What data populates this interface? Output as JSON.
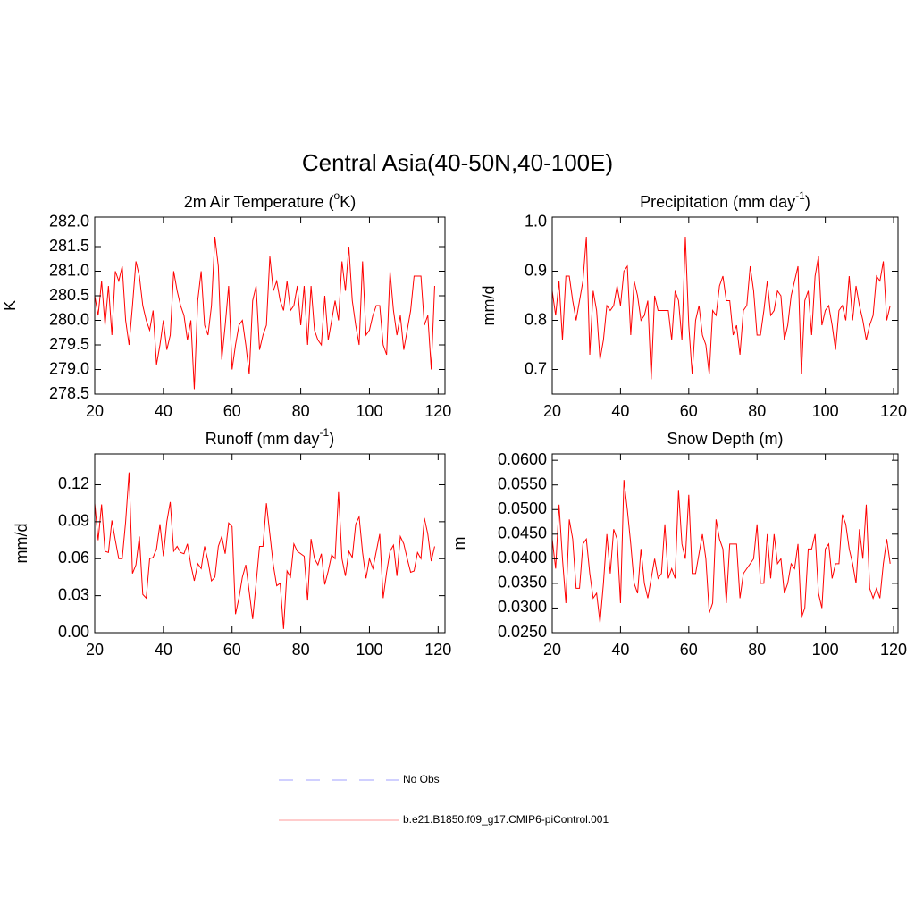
{
  "title": "Central Asia(40-50N,40-100E)",
  "legend": [
    {
      "label": "No Obs",
      "color": "#a0a0ff",
      "dash": true
    },
    {
      "label": "b.e21.B1850.f09_g17.CMIP6-piControl.001",
      "color": "#ff9a9a",
      "dash": false
    }
  ],
  "chart_data": [
    {
      "type": "line",
      "title": [
        {
          "text": "2m Air Temperature ("
        },
        {
          "text": "o",
          "sup": true
        },
        {
          "text": "K)"
        }
      ],
      "y_label": "K",
      "x": [
        20,
        21,
        22,
        23,
        24,
        25,
        26,
        27,
        28,
        29,
        30,
        31,
        32,
        33,
        34,
        35,
        36,
        37,
        38,
        39,
        40,
        41,
        42,
        43,
        44,
        45,
        46,
        47,
        48,
        49,
        50,
        51,
        52,
        53,
        54,
        55,
        56,
        57,
        58,
        59,
        60,
        61,
        62,
        63,
        64,
        65,
        66,
        67,
        68,
        69,
        70,
        71,
        72,
        73,
        74,
        75,
        76,
        77,
        78,
        79,
        80,
        81,
        82,
        83,
        84,
        85,
        86,
        87,
        88,
        89,
        90,
        91,
        92,
        93,
        94,
        95,
        96,
        97,
        98,
        99,
        100,
        101,
        102,
        103,
        104,
        105,
        106,
        107,
        108,
        109,
        110,
        111,
        112,
        113,
        114,
        115,
        116,
        117,
        118,
        119
      ],
      "series": [
        {
          "color": "#ff0000",
          "values": [
            280.5,
            280.1,
            280.8,
            279.9,
            280.7,
            279.7,
            281.0,
            280.8,
            281.1,
            280.0,
            279.5,
            280.3,
            281.2,
            280.9,
            280.3,
            280.0,
            279.8,
            280.2,
            279.1,
            279.5,
            280.0,
            279.4,
            279.7,
            281.0,
            280.6,
            280.3,
            280.1,
            279.6,
            280.0,
            278.6,
            280.4,
            281.0,
            279.9,
            279.7,
            280.3,
            281.7,
            281.1,
            279.2,
            279.9,
            280.7,
            279.0,
            279.5,
            279.9,
            280.0,
            279.5,
            278.9,
            280.4,
            280.7,
            279.4,
            279.7,
            279.9,
            281.3,
            280.6,
            280.8,
            280.4,
            280.2,
            280.8,
            280.2,
            280.3,
            280.7,
            279.9,
            280.7,
            279.5,
            280.7,
            279.8,
            279.6,
            279.5,
            280.5,
            279.6,
            280.0,
            280.4,
            280.0,
            281.2,
            280.6,
            281.5,
            280.4,
            279.9,
            279.5,
            281.2,
            279.7,
            279.8,
            280.1,
            280.3,
            280.3,
            279.5,
            279.3,
            281.0,
            280.2,
            279.7,
            280.1,
            279.4,
            279.8,
            280.2,
            280.9,
            280.9,
            280.9,
            279.9,
            280.1,
            279.0,
            280.7
          ]
        }
      ],
      "xlim": [
        20,
        122
      ],
      "xticks": [
        20,
        40,
        60,
        80,
        100,
        120
      ],
      "ylim": [
        278.5,
        282.1
      ],
      "yticks": [
        {
          "value": 278.5,
          "label": "278.5"
        },
        {
          "value": 279,
          "label": "279.0"
        },
        279.5,
        {
          "value": 280,
          "label": "280.0"
        },
        280.5,
        {
          "value": 281,
          "label": "281.0"
        },
        281.5,
        {
          "value": 282,
          "label": "282.0"
        }
      ]
    },
    {
      "type": "line",
      "title": [
        {
          "text": "Precipitation (mm day"
        },
        {
          "text": "-1",
          "sup": true
        },
        {
          "text": ")"
        }
      ],
      "y_label": "mm/d",
      "x": [
        20,
        21,
        22,
        23,
        24,
        25,
        26,
        27,
        28,
        29,
        30,
        31,
        32,
        33,
        34,
        35,
        36,
        37,
        38,
        39,
        40,
        41,
        42,
        43,
        44,
        45,
        46,
        47,
        48,
        49,
        50,
        51,
        52,
        53,
        54,
        55,
        56,
        57,
        58,
        59,
        60,
        61,
        62,
        63,
        64,
        65,
        66,
        67,
        68,
        69,
        70,
        71,
        72,
        73,
        74,
        75,
        76,
        77,
        78,
        79,
        80,
        81,
        82,
        83,
        84,
        85,
        86,
        87,
        88,
        89,
        90,
        91,
        92,
        93,
        94,
        95,
        96,
        97,
        98,
        99,
        100,
        101,
        102,
        103,
        104,
        105,
        106,
        107,
        108,
        109,
        110,
        111,
        112,
        113,
        114,
        115,
        116,
        117,
        118,
        119
      ],
      "series": [
        {
          "color": "#ff0000",
          "values": [
            0.86,
            0.81,
            0.88,
            0.76,
            0.89,
            0.89,
            0.84,
            0.8,
            0.84,
            0.88,
            0.97,
            0.73,
            0.86,
            0.82,
            0.72,
            0.76,
            0.83,
            0.82,
            0.83,
            0.87,
            0.83,
            0.9,
            0.91,
            0.77,
            0.88,
            0.85,
            0.8,
            0.81,
            0.84,
            0.68,
            0.85,
            0.82,
            0.82,
            0.82,
            0.82,
            0.76,
            0.86,
            0.84,
            0.76,
            0.97,
            0.79,
            0.69,
            0.8,
            0.83,
            0.77,
            0.75,
            0.69,
            0.82,
            0.81,
            0.87,
            0.89,
            0.84,
            0.84,
            0.77,
            0.79,
            0.73,
            0.82,
            0.83,
            0.91,
            0.86,
            0.77,
            0.77,
            0.82,
            0.88,
            0.81,
            0.82,
            0.86,
            0.85,
            0.76,
            0.79,
            0.85,
            0.88,
            0.91,
            0.69,
            0.84,
            0.86,
            0.77,
            0.89,
            0.93,
            0.79,
            0.82,
            0.83,
            0.79,
            0.74,
            0.82,
            0.83,
            0.8,
            0.89,
            0.8,
            0.87,
            0.83,
            0.8,
            0.76,
            0.79,
            0.81,
            0.89,
            0.88,
            0.92,
            0.8,
            0.83
          ]
        }
      ],
      "xlim": [
        20,
        121.3
      ],
      "xticks": [
        20,
        40,
        60,
        80,
        100,
        120
      ],
      "ylim": [
        0.65,
        1.01
      ],
      "yticks": [
        0.7,
        0.8,
        0.9,
        {
          "value": 1,
          "label": "1.0"
        }
      ]
    },
    {
      "type": "line",
      "title": [
        {
          "text": "Runoff (mm day"
        },
        {
          "text": "-1",
          "sup": true
        },
        {
          "text": ")"
        }
      ],
      "y_label": "mm/d",
      "x": [
        20,
        21,
        22,
        23,
        24,
        25,
        26,
        27,
        28,
        29,
        30,
        31,
        32,
        33,
        34,
        35,
        36,
        37,
        38,
        39,
        40,
        41,
        42,
        43,
        44,
        45,
        46,
        47,
        48,
        49,
        50,
        51,
        52,
        53,
        54,
        55,
        56,
        57,
        58,
        59,
        60,
        61,
        62,
        63,
        64,
        65,
        66,
        67,
        68,
        69,
        70,
        71,
        72,
        73,
        74,
        75,
        76,
        77,
        78,
        79,
        80,
        81,
        82,
        83,
        84,
        85,
        86,
        87,
        88,
        89,
        90,
        91,
        92,
        93,
        94,
        95,
        96,
        97,
        98,
        99,
        100,
        101,
        102,
        103,
        104,
        105,
        106,
        107,
        108,
        109,
        110,
        111,
        112,
        113,
        114,
        115,
        116,
        117,
        118,
        119
      ],
      "series": [
        {
          "color": "#ff0000",
          "values": [
            0.105,
            0.075,
            0.104,
            0.066,
            0.065,
            0.091,
            0.075,
            0.06,
            0.06,
            0.09,
            0.13,
            0.048,
            0.055,
            0.078,
            0.031,
            0.028,
            0.06,
            0.061,
            0.068,
            0.088,
            0.062,
            0.09,
            0.106,
            0.066,
            0.07,
            0.065,
            0.064,
            0.072,
            0.055,
            0.042,
            0.056,
            0.052,
            0.07,
            0.058,
            0.042,
            0.045,
            0.07,
            0.078,
            0.064,
            0.089,
            0.086,
            0.015,
            0.028,
            0.045,
            0.055,
            0.033,
            0.011,
            0.04,
            0.07,
            0.07,
            0.105,
            0.08,
            0.055,
            0.038,
            0.04,
            0.003,
            0.05,
            0.045,
            0.072,
            0.066,
            0.064,
            0.062,
            0.026,
            0.076,
            0.06,
            0.055,
            0.064,
            0.039,
            0.05,
            0.063,
            0.06,
            0.114,
            0.06,
            0.046,
            0.066,
            0.061,
            0.088,
            0.094,
            0.065,
            0.044,
            0.06,
            0.052,
            0.066,
            0.08,
            0.028,
            0.049,
            0.066,
            0.071,
            0.046,
            0.078,
            0.072,
            0.06,
            0.049,
            0.05,
            0.065,
            0.06,
            0.093,
            0.08,
            0.058,
            0.07
          ]
        }
      ],
      "xlim": [
        20,
        122
      ],
      "xticks": [
        20,
        40,
        60,
        80,
        100,
        120
      ],
      "ylim": [
        0,
        0.145
      ],
      "yticks": [
        {
          "value": 0,
          "label": "0.00"
        },
        0.03,
        {
          "value": 0.06,
          "label": "0.06"
        },
        0.09,
        0.12
      ]
    },
    {
      "type": "line",
      "title": [
        {
          "text": "Snow Depth (m)"
        }
      ],
      "y_label": "m",
      "x": [
        20,
        21,
        22,
        23,
        24,
        25,
        26,
        27,
        28,
        29,
        30,
        31,
        32,
        33,
        34,
        35,
        36,
        37,
        38,
        39,
        40,
        41,
        42,
        43,
        44,
        45,
        46,
        47,
        48,
        49,
        50,
        51,
        52,
        53,
        54,
        55,
        56,
        57,
        58,
        59,
        60,
        61,
        62,
        63,
        64,
        65,
        66,
        67,
        68,
        69,
        70,
        71,
        72,
        73,
        74,
        75,
        76,
        77,
        78,
        79,
        80,
        81,
        82,
        83,
        84,
        85,
        86,
        87,
        88,
        89,
        90,
        91,
        92,
        93,
        94,
        95,
        96,
        97,
        98,
        99,
        100,
        101,
        102,
        103,
        104,
        105,
        106,
        107,
        108,
        109,
        110,
        111,
        112,
        113,
        114,
        115,
        116,
        117,
        118,
        119
      ],
      "series": [
        {
          "color": "#ff0000",
          "values": [
            0.044,
            0.038,
            0.051,
            0.04,
            0.031,
            0.048,
            0.044,
            0.034,
            0.034,
            0.043,
            0.044,
            0.037,
            0.032,
            0.033,
            0.027,
            0.035,
            0.045,
            0.037,
            0.046,
            0.044,
            0.031,
            0.056,
            0.05,
            0.043,
            0.035,
            0.033,
            0.042,
            0.035,
            0.032,
            0.036,
            0.04,
            0.036,
            0.037,
            0.047,
            0.036,
            0.038,
            0.036,
            0.054,
            0.043,
            0.04,
            0.053,
            0.037,
            0.037,
            0.041,
            0.045,
            0.04,
            0.029,
            0.031,
            0.048,
            0.044,
            0.042,
            0.031,
            0.043,
            0.043,
            0.043,
            0.032,
            0.037,
            0.038,
            0.039,
            0.04,
            0.047,
            0.035,
            0.035,
            0.045,
            0.036,
            0.045,
            0.039,
            0.04,
            0.033,
            0.035,
            0.039,
            0.038,
            0.043,
            0.028,
            0.03,
            0.042,
            0.042,
            0.045,
            0.033,
            0.03,
            0.042,
            0.043,
            0.036,
            0.039,
            0.039,
            0.049,
            0.047,
            0.042,
            0.039,
            0.035,
            0.046,
            0.04,
            0.051,
            0.034,
            0.032,
            0.034,
            0.032,
            0.039,
            0.044,
            0.039
          ]
        }
      ],
      "xlim": [
        20,
        121.3
      ],
      "xticks": [
        20,
        40,
        60,
        80,
        100,
        120
      ],
      "ylim": [
        0.025,
        0.0613
      ],
      "yticks": [
        {
          "value": 0.025,
          "label": "0.0250"
        },
        {
          "value": 0.03,
          "label": "0.0300"
        },
        {
          "value": 0.035,
          "label": "0.0350"
        },
        {
          "value": 0.04,
          "label": "0.0400"
        },
        {
          "value": 0.045,
          "label": "0.0450"
        },
        {
          "value": 0.05,
          "label": "0.0500"
        },
        {
          "value": 0.055,
          "label": "0.0550"
        },
        {
          "value": 0.06,
          "label": "0.0600"
        }
      ]
    }
  ]
}
